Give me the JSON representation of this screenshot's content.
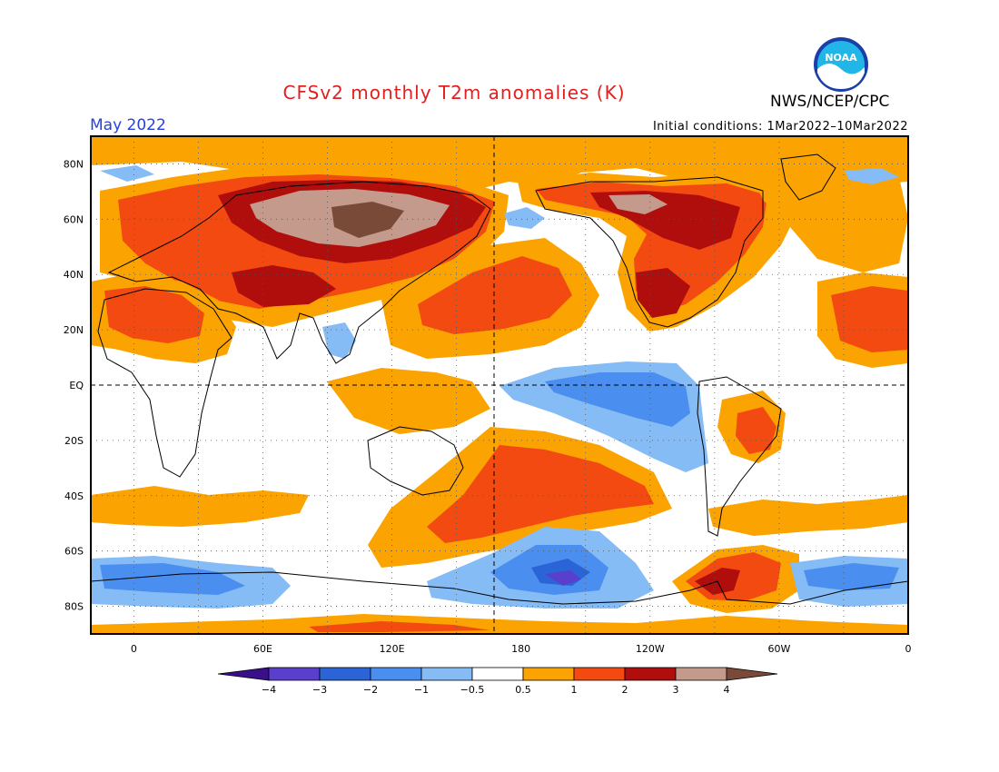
{
  "header": {
    "title": "CFSv2 monthly T2m anomalies (K)",
    "month": "May 2022",
    "agency": "NWS/NCEP/CPC",
    "initial_conditions": "Initial conditions: 1Mar2022–10Mar2022",
    "logo_text": "NOAA"
  },
  "map": {
    "projection": "cylindrical equidistant",
    "lon_range": [
      -20,
      360
    ],
    "lat_range": [
      -90,
      90
    ],
    "lat_labels": [
      "80N",
      "60N",
      "40N",
      "20N",
      "EQ",
      "20S",
      "40S",
      "60S",
      "80S"
    ],
    "lon_labels": [
      "0",
      "60E",
      "120E",
      "180",
      "120W",
      "60W",
      "0"
    ],
    "dashed_reference_lines": [
      "EQ",
      "180"
    ],
    "gridlines": "dotted",
    "colors": {
      "ocean_neutral": "#ffffff",
      "coastline": "#000000"
    }
  },
  "colorbar": {
    "boundaries": [
      "-4",
      "-3",
      "-2",
      "-1",
      "-0.5",
      "0.5",
      "1",
      "2",
      "3",
      "4"
    ],
    "bins": [
      {
        "range": "< -4",
        "color": "#3a0f8a"
      },
      {
        "range": "-4 to -3",
        "color": "#5a3ecc"
      },
      {
        "range": "-3 to -2",
        "color": "#2a64d6"
      },
      {
        "range": "-2 to -1",
        "color": "#4a8ef0"
      },
      {
        "range": "-1 to -0.5",
        "color": "#86bcf5"
      },
      {
        "range": "-0.5 to 0.5",
        "color": "#ffffff"
      },
      {
        "range": "0.5 to 1",
        "color": "#fba300"
      },
      {
        "range": "1 to 2",
        "color": "#f24a10"
      },
      {
        "range": "2 to 3",
        "color": "#b00d0d"
      },
      {
        "range": "3 to 4",
        "color": "#c49a8c"
      },
      {
        "range": "> 4",
        "color": "#7a4a38"
      }
    ]
  }
}
